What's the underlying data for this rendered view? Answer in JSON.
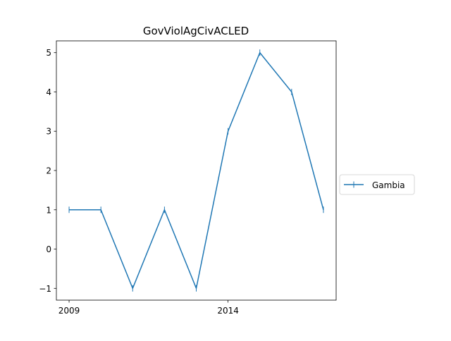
{
  "chart_data": {
    "type": "line",
    "title": "GovViolAgCivACLED",
    "xlabel": "",
    "ylabel": "",
    "x": [
      2009,
      2010,
      2011,
      2012,
      2013,
      2014,
      2015,
      2016,
      2017
    ],
    "series": [
      {
        "name": "Gambia",
        "values": [
          1,
          1,
          -1,
          1,
          -1,
          3,
          5,
          4,
          1
        ]
      }
    ],
    "xlim": [
      2008.6,
      2017.4
    ],
    "ylim": [
      -1.3,
      5.3
    ],
    "xticks": [
      {
        "value": 2009,
        "label": "2009"
      },
      {
        "value": 2014,
        "label": "2014"
      }
    ],
    "yticks": [
      {
        "value": -1,
        "label": "−1"
      },
      {
        "value": 0,
        "label": "0"
      },
      {
        "value": 1,
        "label": "1"
      },
      {
        "value": 2,
        "label": "2"
      },
      {
        "value": 3,
        "label": "3"
      },
      {
        "value": 4,
        "label": "4"
      },
      {
        "value": 5,
        "label": "5"
      }
    ],
    "grid": false,
    "legend_position": "outside-right",
    "line_color": "#1f77b4",
    "marker": "vertical-tick"
  }
}
